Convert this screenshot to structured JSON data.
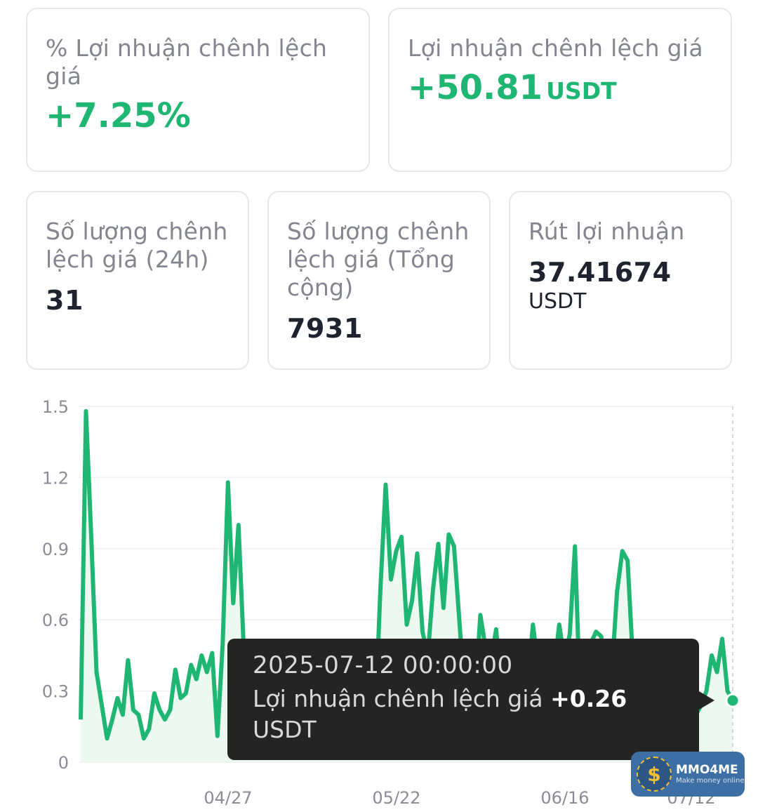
{
  "cards": {
    "spread_pct": {
      "title": "% Lợi nhuận chênh lệch giá",
      "value": "+7.25%"
    },
    "spread_profit": {
      "title": "Lợi nhuận chênh lệch giá",
      "value": "+50.81",
      "unit": "USDT"
    },
    "count_24h": {
      "title": "Số lượng chênh lệch giá (24h)",
      "value": "31"
    },
    "count_total": {
      "title": "Số lượng chênh lệch giá (Tổng cộng)",
      "value": "7931"
    },
    "withdraw": {
      "title": "Rút lợi nhuận",
      "value": "37.41674",
      "unit": "USDT"
    }
  },
  "tooltip": {
    "date": "2025-07-12 00:00:00",
    "label": "Lợi nhuận chênh lệch giá",
    "value": "+0.26",
    "unit": "USDT"
  },
  "watermark": {
    "logo_symbol": "$",
    "name": "MMO4ME",
    "tagline": "Make money online"
  },
  "chart_data": {
    "type": "area",
    "ylim": [
      0,
      1.5
    ],
    "y_ticks": [
      "0",
      "0.3",
      "0.6",
      "0.9",
      "1.2",
      "1.5"
    ],
    "x_ticks": [
      "04/27",
      "05/22",
      "06/16",
      "07/12"
    ],
    "line_color": "#1fb673",
    "fill_color": "#e6f7ee",
    "grid": true,
    "values": [
      0.18,
      1.48,
      0.95,
      0.38,
      0.24,
      0.1,
      0.18,
      0.27,
      0.2,
      0.43,
      0.22,
      0.2,
      0.1,
      0.14,
      0.29,
      0.22,
      0.18,
      0.22,
      0.39,
      0.27,
      0.29,
      0.41,
      0.35,
      0.45,
      0.38,
      0.46,
      0.11,
      0.5,
      1.18,
      0.67,
      1.0,
      0.48,
      0.36,
      0.32,
      0.41,
      0.25,
      0.15,
      0.3,
      0.05,
      0.07,
      0.07,
      0.25,
      0.33,
      0.5,
      0.46,
      0.25,
      0.2,
      0.17,
      0.3,
      0.27,
      0.2,
      0.17,
      0.08,
      0.09,
      0.14,
      0.2,
      0.18,
      0.73,
      1.17,
      0.77,
      0.89,
      0.95,
      0.58,
      0.68,
      0.88,
      0.55,
      0.45,
      0.73,
      0.92,
      0.65,
      0.96,
      0.91,
      0.6,
      0.29,
      0.3,
      0.28,
      0.62,
      0.48,
      0.42,
      0.56,
      0.3,
      0.22,
      0.36,
      0.28,
      0.3,
      0.33,
      0.58,
      0.4,
      0.27,
      0.31,
      0.39,
      0.58,
      0.43,
      0.54,
      0.91,
      0.25,
      0.18,
      0.5,
      0.55,
      0.53,
      0.18,
      0.38,
      0.72,
      0.89,
      0.85,
      0.43,
      0.33,
      0.39,
      0.3,
      0.07,
      0.17,
      0.21,
      0.2,
      0.42,
      0.33,
      0.2,
      0.1,
      0.2,
      0.24,
      0.3,
      0.45,
      0.38,
      0.52,
      0.3,
      0.26
    ]
  }
}
